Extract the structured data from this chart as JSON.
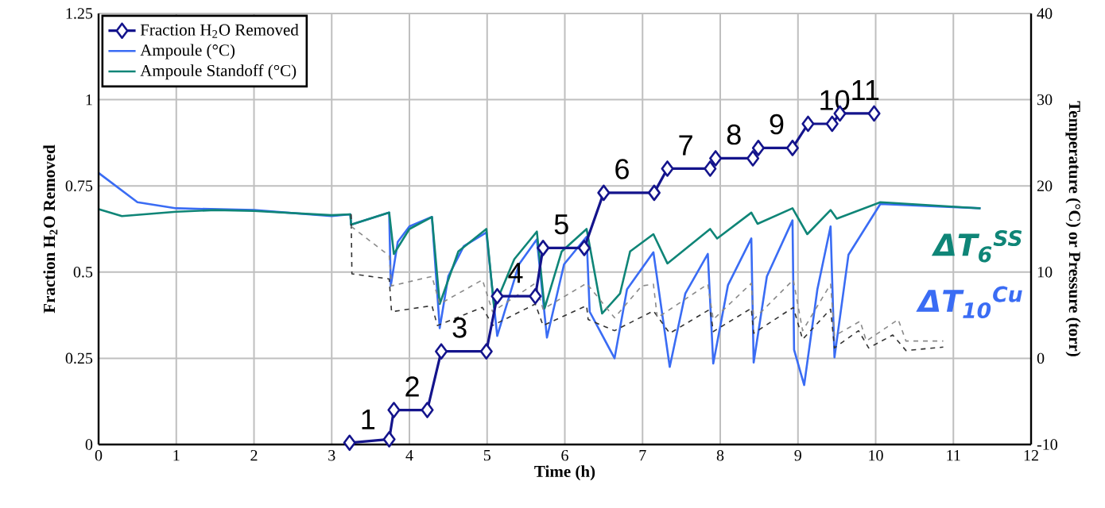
{
  "chart_data": {
    "type": "line",
    "xlabel": "Time (h)",
    "ylabel": "Fraction H$_{2}$O Removed",
    "y2label": "Temperature (°C) or Pressure (torr)",
    "xlim": [
      0,
      12
    ],
    "xticks": [
      0,
      1,
      2,
      3,
      4,
      5,
      6,
      7,
      8,
      9,
      10,
      11,
      12
    ],
    "ylim": [
      0,
      1.25
    ],
    "yticks": [
      0,
      0.25,
      0.5,
      0.75,
      1,
      1.25
    ],
    "y2lim": [
      -10,
      40
    ],
    "y2ticks": [
      -10,
      0,
      10,
      20,
      30,
      40
    ],
    "grid": true,
    "legend": "top left",
    "series": [
      {
        "name": "Fraction H$_{2}$O Removed",
        "color": "#14148c",
        "marker": "diamond",
        "line_style": "solid",
        "x": [
          3.23,
          3.74,
          3.8,
          4.23,
          4.41,
          4.99,
          5.13,
          5.62,
          5.72,
          6.25,
          6.5,
          7.15,
          7.32,
          7.87,
          7.94,
          8.42,
          8.49,
          8.93,
          9.13,
          9.44,
          9.54,
          9.98
        ],
        "values": [
          0.005,
          0.015,
          0.1,
          0.1,
          0.27,
          0.27,
          0.43,
          0.43,
          0.57,
          0.57,
          0.73,
          0.73,
          0.8,
          0.8,
          0.83,
          0.83,
          0.86,
          0.86,
          0.93,
          0.93,
          0.96,
          0.96
        ]
      },
      {
        "name": "Ampoule (°C)",
        "color": "#3a6cf4",
        "axis": "y2",
        "line_style": "solid",
        "x": [
          0,
          0.5,
          1,
          2,
          3,
          3.24,
          3.25,
          3.74,
          3.76,
          3.85,
          4.0,
          4.29,
          4.39,
          4.5,
          4.7,
          4.99,
          5.13,
          5.41,
          5.64,
          5.77,
          5.99,
          6.28,
          6.32,
          6.64,
          6.8,
          7.14,
          7.35,
          7.55,
          7.84,
          7.91,
          8.1,
          8.4,
          8.43,
          8.6,
          8.93,
          8.95,
          9.08,
          9.25,
          9.42,
          9.47,
          9.65,
          10.06,
          11.35
        ],
        "values": [
          21.5,
          18.1,
          17.4,
          17.2,
          16.5,
          16.7,
          15.5,
          16.9,
          8.4,
          13.5,
          15.3,
          16.4,
          3.5,
          9.5,
          13,
          14.6,
          2.6,
          10.9,
          13.8,
          2.4,
          10.9,
          14.1,
          5.4,
          0,
          8,
          12.3,
          -1.0,
          7.5,
          12.1,
          -0.6,
          8.5,
          13.9,
          -0.5,
          9.5,
          16.0,
          1.0,
          -3.1,
          8,
          15.3,
          0.1,
          12,
          17.9,
          17.4
        ]
      },
      {
        "name": "Ampoule Standoff (°C)",
        "color": "#0f8577",
        "axis": "y2",
        "line_style": "solid",
        "x": [
          0,
          0.3,
          1,
          1.5,
          2,
          3,
          3.24,
          3.25,
          3.74,
          3.8,
          4.0,
          4.29,
          4.39,
          4.63,
          4.99,
          5.09,
          5.35,
          5.64,
          5.74,
          5.96,
          6.28,
          6.48,
          6.71,
          6.84,
          7.14,
          7.32,
          7.87,
          7.96,
          8.4,
          8.48,
          8.93,
          9.12,
          9.42,
          9.5,
          10.06,
          11.35
        ],
        "values": [
          17.3,
          16.5,
          17.0,
          17.2,
          17.1,
          16.6,
          16.7,
          15.5,
          16.9,
          12.1,
          15,
          16.4,
          6.3,
          12.4,
          15.0,
          5.9,
          11.5,
          14.7,
          5.8,
          12.4,
          15.0,
          5.2,
          7.5,
          12.4,
          14.4,
          11.0,
          15.0,
          13.9,
          16.9,
          15.6,
          17.4,
          14.4,
          17.2,
          16.2,
          18.1,
          17.4
        ]
      },
      {
        "color": "#333333",
        "axis": "y2",
        "line_style": "dashed",
        "x": [
          3.25,
          3.26,
          3.74,
          3.77,
          4.29,
          4.36,
          4.94,
          5.07,
          5.62,
          5.72,
          6.28,
          6.3,
          6.64,
          7.14,
          7.35,
          7.87,
          7.91,
          8.4,
          8.43,
          8.94,
          9.06,
          9.42,
          9.47,
          9.78,
          9.91,
          10.22,
          10.39,
          10.87
        ],
        "values": [
          16.7,
          9.8,
          9.2,
          5.4,
          6.1,
          3.8,
          5.9,
          3.8,
          6.3,
          3.8,
          6.1,
          4.5,
          3.2,
          5.5,
          2.9,
          5.7,
          3.1,
          5.8,
          2.9,
          5.9,
          2.2,
          5.7,
          1.2,
          3.2,
          1.2,
          2.7,
          0.9,
          1.3
        ]
      },
      {
        "color": "#8a8a8a",
        "axis": "y2",
        "line_style": "dashed",
        "x": [
          3.25,
          3.74,
          3.77,
          4.29,
          4.39,
          4.94,
          5.07,
          5.62,
          5.72,
          6.28,
          6.64,
          6.99,
          7.14,
          7.19,
          7.84,
          7.91,
          8.4,
          8.43,
          8.94,
          9.06,
          9.42,
          9.47,
          9.8,
          9.88,
          10.29,
          10.39,
          10.87
        ],
        "values": [
          15.3,
          11.9,
          8.4,
          9.5,
          6.3,
          9.1,
          5.4,
          8.7,
          5.7,
          8.7,
          4.7,
          8.4,
          8.6,
          4.7,
          8.6,
          4.5,
          8.7,
          4.5,
          9.1,
          3.2,
          8.6,
          2.6,
          4.3,
          2.0,
          4.5,
          2.0,
          2.0
        ]
      }
    ],
    "annotations": [
      {
        "text": "1",
        "x": 3.23,
        "y": 0.005
      },
      {
        "text": "2",
        "x": 3.8,
        "y": 0.1
      },
      {
        "text": "3",
        "x": 4.41,
        "y": 0.27
      },
      {
        "text": "4",
        "x": 5.13,
        "y": 0.43
      },
      {
        "text": "5",
        "x": 5.72,
        "y": 0.57
      },
      {
        "text": "6",
        "x": 6.5,
        "y": 0.73
      },
      {
        "text": "7",
        "x": 7.32,
        "y": 0.8
      },
      {
        "text": "8",
        "x": 7.94,
        "y": 0.83
      },
      {
        "text": "9",
        "x": 8.49,
        "y": 0.86
      },
      {
        "text": "10",
        "x": 9.13,
        "y": 0.93
      },
      {
        "text": "11",
        "x": 9.54,
        "y": 0.96
      },
      "ΔT$_{6}$$^{SS}$",
      "ΔT$_{10}$$^{Cu}$"
    ]
  }
}
